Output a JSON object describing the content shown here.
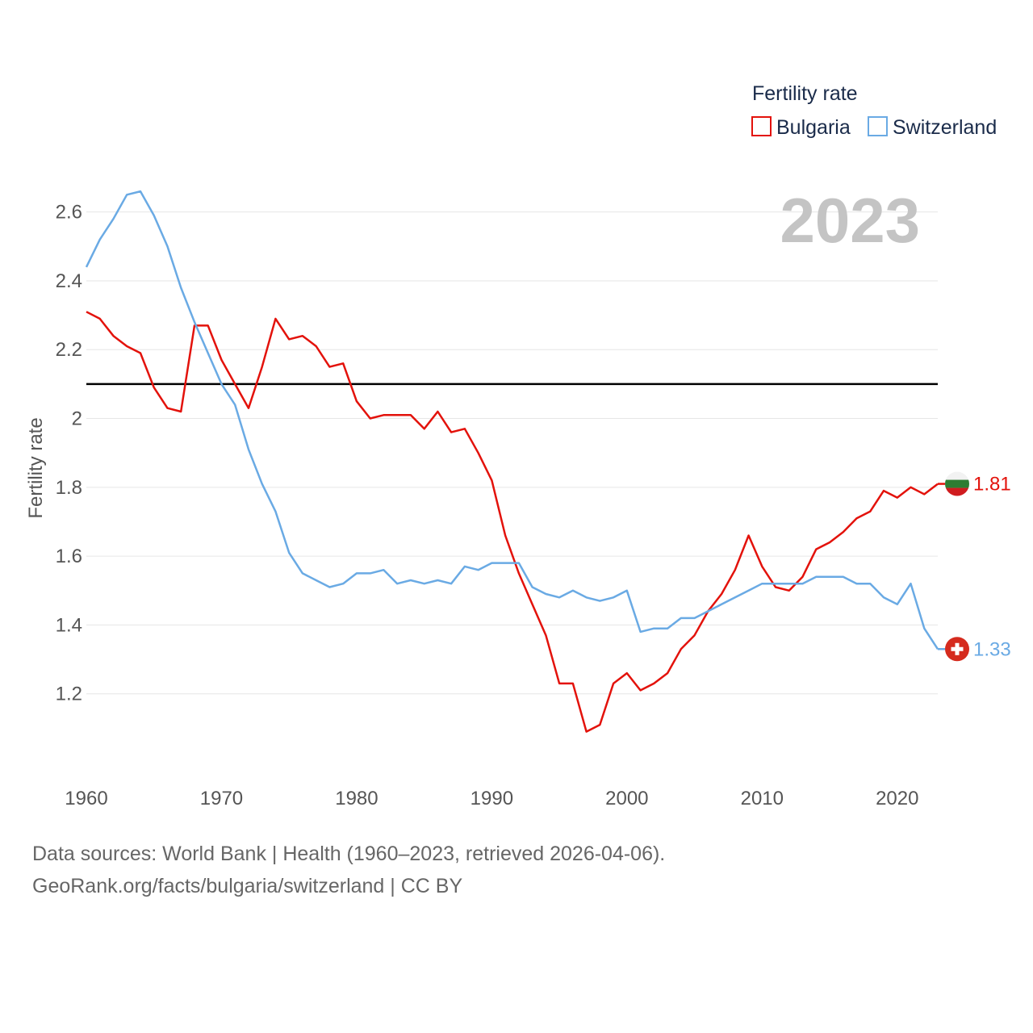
{
  "chart_data": {
    "type": "line",
    "year_label": "2023",
    "ylabel": "Fertility rate",
    "ylim": [
      1.0,
      2.7
    ],
    "xlim": [
      1960,
      2023
    ],
    "y_ticks": [
      1.2,
      1.4,
      1.6,
      1.8,
      2.0,
      2.2,
      2.4,
      2.6
    ],
    "y_tick_labels": [
      "1.2",
      "1.4",
      "1.6",
      "1.8",
      "2",
      "2.2",
      "2.4",
      "2.6"
    ],
    "x_ticks": [
      1960,
      1970,
      1980,
      1990,
      2000,
      2010,
      2020
    ],
    "x_tick_labels": [
      "1960",
      "1970",
      "1980",
      "1990",
      "2000",
      "2010",
      "2020"
    ],
    "reference_line": 2.1,
    "legend": {
      "title": "Fertility rate",
      "placement": "top-right"
    },
    "series": [
      {
        "name": "Bulgaria",
        "color": "#e3120b",
        "end_label": "1.81",
        "x": [
          1960,
          1961,
          1962,
          1963,
          1964,
          1965,
          1966,
          1967,
          1968,
          1969,
          1970,
          1971,
          1972,
          1973,
          1974,
          1975,
          1976,
          1977,
          1978,
          1979,
          1980,
          1981,
          1982,
          1983,
          1984,
          1985,
          1986,
          1987,
          1988,
          1989,
          1990,
          1991,
          1992,
          1993,
          1994,
          1995,
          1996,
          1997,
          1998,
          1999,
          2000,
          2001,
          2002,
          2003,
          2004,
          2005,
          2006,
          2007,
          2008,
          2009,
          2010,
          2011,
          2012,
          2013,
          2014,
          2015,
          2016,
          2017,
          2018,
          2019,
          2020,
          2021,
          2022,
          2023
        ],
        "values": [
          2.31,
          2.29,
          2.24,
          2.21,
          2.19,
          2.09,
          2.03,
          2.02,
          2.27,
          2.27,
          2.17,
          2.1,
          2.03,
          2.15,
          2.29,
          2.23,
          2.24,
          2.21,
          2.15,
          2.16,
          2.05,
          2.0,
          2.01,
          2.01,
          2.01,
          1.97,
          2.02,
          1.96,
          1.97,
          1.9,
          1.82,
          1.66,
          1.55,
          1.46,
          1.37,
          1.23,
          1.23,
          1.09,
          1.11,
          1.23,
          1.26,
          1.21,
          1.23,
          1.26,
          1.33,
          1.37,
          1.44,
          1.49,
          1.56,
          1.66,
          1.57,
          1.51,
          1.5,
          1.54,
          1.62,
          1.64,
          1.67,
          1.71,
          1.73,
          1.79,
          1.77,
          1.8,
          1.78,
          1.81
        ]
      },
      {
        "name": "Switzerland",
        "color": "#6aaae4",
        "end_label": "1.33",
        "x": [
          1960,
          1961,
          1962,
          1963,
          1964,
          1965,
          1966,
          1967,
          1968,
          1969,
          1970,
          1971,
          1972,
          1973,
          1974,
          1975,
          1976,
          1977,
          1978,
          1979,
          1980,
          1981,
          1982,
          1983,
          1984,
          1985,
          1986,
          1987,
          1988,
          1989,
          1990,
          1991,
          1992,
          1993,
          1994,
          1995,
          1996,
          1997,
          1998,
          1999,
          2000,
          2001,
          2002,
          2003,
          2004,
          2005,
          2006,
          2007,
          2008,
          2009,
          2010,
          2011,
          2012,
          2013,
          2014,
          2015,
          2016,
          2017,
          2018,
          2019,
          2020,
          2021,
          2022,
          2023
        ],
        "values": [
          2.44,
          2.52,
          2.58,
          2.65,
          2.66,
          2.59,
          2.5,
          2.38,
          2.28,
          2.19,
          2.1,
          2.04,
          1.91,
          1.81,
          1.73,
          1.61,
          1.55,
          1.53,
          1.51,
          1.52,
          1.55,
          1.55,
          1.56,
          1.52,
          1.53,
          1.52,
          1.53,
          1.52,
          1.57,
          1.56,
          1.58,
          1.58,
          1.58,
          1.51,
          1.49,
          1.48,
          1.5,
          1.48,
          1.47,
          1.48,
          1.5,
          1.38,
          1.39,
          1.39,
          1.42,
          1.42,
          1.44,
          1.46,
          1.48,
          1.5,
          1.52,
          1.52,
          1.52,
          1.52,
          1.54,
          1.54,
          1.54,
          1.52,
          1.52,
          1.48,
          1.46,
          1.52,
          1.39,
          1.33
        ]
      }
    ]
  },
  "flags": {
    "bulgaria": "bulgaria-flag-icon",
    "switzerland": "switzerland-flag-icon"
  },
  "footer": {
    "line1": "Data sources: World Bank | Health (1960–2023, retrieved 2026-04-06).",
    "line2": "GeoRank.org/facts/bulgaria/switzerland | CC BY"
  }
}
